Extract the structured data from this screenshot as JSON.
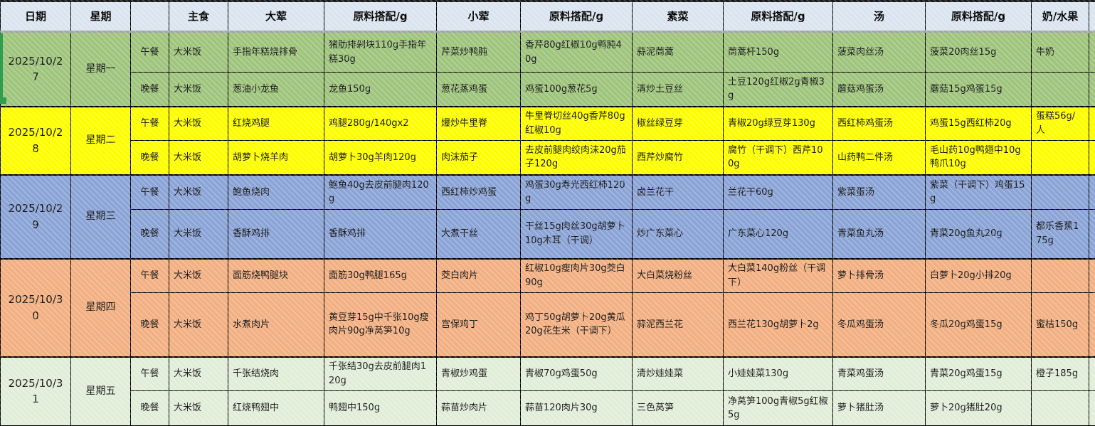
{
  "header": {
    "columns": [
      "日期",
      "星期",
      "",
      "主食",
      "大荤",
      "原料搭配/g",
      "小荤",
      "原料搭配/g",
      "素菜",
      "原料搭配/g",
      "汤",
      "原料搭配/g",
      "奶/水果"
    ]
  },
  "colors": {
    "header_bg": "#dce6f1",
    "monday": "#a0c67e",
    "tuesday": "#ffff00",
    "wednesday": "#8ca5d8",
    "thursday": "#f4b183",
    "friday": "#e2efda",
    "selection_marker": "#2f9e4d"
  },
  "days": [
    {
      "date": "2025/10/27",
      "weekday": "星期一",
      "color_key": "monday",
      "meals": [
        {
          "meal": "午餐",
          "staple": "大米饭",
          "main": "手指年糕烧排骨",
          "main_ing": "猪肋排剁块110g手指年糕30g",
          "small": "芹菜炒鸭肫",
          "small_ing": "香芹80g红椒10g鸭肫40g",
          "veg": "蒜泥茼蒿",
          "veg_ing": "茼蒿杆150g",
          "soup": "菠菜肉丝汤",
          "soup_ing": "菠菜20肉丝15g",
          "fruit": "牛奶"
        },
        {
          "meal": "晚餐",
          "staple": "大米饭",
          "main": "葱油小龙鱼",
          "main_ing": "龙鱼150g",
          "small": "葱花蒸鸡蛋",
          "small_ing": "鸡蛋100g葱花5g",
          "veg": "清炒土豆丝",
          "veg_ing": "土豆120g红椒2g青椒3g",
          "soup": "蘑菇鸡蛋汤",
          "soup_ing": "蘑菇15g鸡蛋15g",
          "fruit": ""
        }
      ]
    },
    {
      "date": "2025/10/28",
      "weekday": "星期二",
      "color_key": "tuesday",
      "meals": [
        {
          "meal": "午餐",
          "staple": "大米饭",
          "main": "红烧鸡腿",
          "main_ing": "鸡腿280g/140gx2",
          "small": "爆炒牛里脊",
          "small_ing": "牛里脊切丝40g香芹80g红椒10g",
          "veg": "椒丝绿豆芽",
          "veg_ing": "青椒20g绿豆芽130g",
          "soup": "西红柿鸡蛋汤",
          "soup_ing": "鸡蛋15g西红柿20g",
          "fruit": "蛋糕56g/人"
        },
        {
          "meal": "晚餐",
          "staple": "大米饭",
          "main": "胡萝卜烧羊肉",
          "main_ing": "胡萝卜30g羊肉120g",
          "small": "肉沫茄子",
          "small_ing": "去皮前腿肉绞肉沫20g茄子120g",
          "veg": "西芹炒腐竹",
          "veg_ing": "腐竹（干调下）西芹100g",
          "soup": "山药鸭二件汤",
          "soup_ing": "毛山药10g鸭翅中10g鸭爪10g",
          "fruit": ""
        }
      ]
    },
    {
      "date": "2025/10/29",
      "weekday": "星期三",
      "color_key": "wednesday",
      "meals": [
        {
          "meal": "午餐",
          "staple": "大米饭",
          "main": "鲍鱼烧肉",
          "main_ing": "鲍鱼40g去皮前腿肉120g",
          "small": "西红柿炒鸡蛋",
          "small_ing": "鸡蛋30g寿光西红柿120g",
          "veg": "卤兰花干",
          "veg_ing": "兰花干60g",
          "soup": "紫菜蛋汤",
          "soup_ing": "紫菜（干调下）鸡蛋15g",
          "fruit": ""
        },
        {
          "meal": "晚餐",
          "staple": "大米饭",
          "main": "香酥鸡排",
          "main_ing": "香酥鸡排",
          "small": "大煮干丝",
          "small_ing": "干丝15g肉丝30g胡萝卜10g木耳（干调）",
          "veg": "炒广东菜心",
          "veg_ing": "广东菜心120g",
          "soup": "青菜鱼丸汤",
          "soup_ing": "青菜20g鱼丸20g",
          "fruit": "都乐香蕉175g"
        }
      ]
    },
    {
      "date": "2025/10/30",
      "weekday": "星期四",
      "color_key": "thursday",
      "meals": [
        {
          "meal": "午餐",
          "staple": "大米饭",
          "main": "面筋烧鸭腿块",
          "main_ing": "面筋30g鸭腿165g",
          "small": "茭白肉片",
          "small_ing": "红椒10g瘦肉片30g茭白90g",
          "veg": "大白菜烧粉丝",
          "veg_ing": "大白菜140g粉丝（干调下）",
          "soup": "萝卜排骨汤",
          "soup_ing": "白萝卜20g小排20g",
          "fruit": ""
        },
        {
          "meal": "晚餐",
          "staple": "大米饭",
          "main": "水煮肉片",
          "main_ing": "黄豆芽15g中千张10g瘦肉片90g净莴笋10g",
          "small": "宫保鸡丁",
          "small_ing": "鸡丁50g胡萝卜20g黄瓜20g花生米（干调下）",
          "veg": "蒜泥西兰花",
          "veg_ing": "西兰花130g胡萝卜2g",
          "soup": "冬瓜鸡蛋汤",
          "soup_ing": "冬瓜20g鸡蛋15g",
          "fruit": "蜜桔150g"
        }
      ]
    },
    {
      "date": "2025/10/31",
      "weekday": "星期五",
      "color_key": "friday",
      "meals": [
        {
          "meal": "午餐",
          "staple": "大米饭",
          "main": "千张结烧肉",
          "main_ing": "千张结30g去皮前腿肉120g",
          "small": "青椒炒鸡蛋",
          "small_ing": "青椒70g鸡蛋50g",
          "veg": "清炒娃娃菜",
          "veg_ing": "小娃娃菜130g",
          "soup": "青菜鸡蛋汤",
          "soup_ing": "青菜20g鸡蛋15g",
          "fruit": "橙子185g"
        },
        {
          "meal": "晚餐",
          "staple": "大米饭",
          "main": "红烧鸭翅中",
          "main_ing": "鸭翅中150g",
          "small": "蒜苗炒肉片",
          "small_ing": "蒜苗120肉片30g",
          "veg": "三色莴笋",
          "veg_ing": "净莴笋100g青椒5g红椒5g",
          "soup": "萝卜猪肚汤",
          "soup_ing": "萝卜20g猪肚20g",
          "fruit": ""
        }
      ]
    }
  ]
}
